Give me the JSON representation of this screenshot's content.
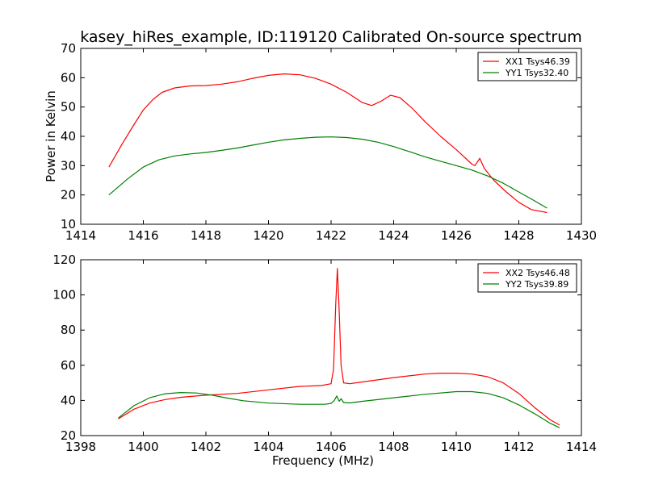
{
  "chart_data": [
    {
      "type": "line",
      "title": "kasey_hiRes_example, ID:119120 Calibrated On-source spectrum",
      "xlabel": "",
      "ylabel": "Power in Kelvin",
      "xlim": [
        1414,
        1430
      ],
      "ylim": [
        10,
        70
      ],
      "xticks": [
        1414,
        1416,
        1418,
        1420,
        1422,
        1424,
        1426,
        1428,
        1430
      ],
      "yticks": [
        10,
        20,
        30,
        40,
        50,
        60,
        70
      ],
      "grid": false,
      "legend": "top-right",
      "series": [
        {
          "name": "XX1 Tsys46.39",
          "color": "#ff0000",
          "x": [
            1414.9,
            1415.3,
            1415.7,
            1416.0,
            1416.3,
            1416.6,
            1417.0,
            1417.5,
            1418.0,
            1418.5,
            1419.0,
            1419.5,
            1420.0,
            1420.5,
            1421.0,
            1421.5,
            1422.0,
            1422.5,
            1423.0,
            1423.3,
            1423.6,
            1423.9,
            1424.2,
            1424.6,
            1425.0,
            1425.5,
            1426.0,
            1426.5,
            1426.6,
            1426.75,
            1426.9,
            1427.2,
            1427.6,
            1428.0,
            1428.4,
            1428.9
          ],
          "y": [
            29.5,
            37,
            44,
            49,
            52.5,
            55,
            56.5,
            57.2,
            57.3,
            57.8,
            58.6,
            59.8,
            60.8,
            61.3,
            61,
            59.8,
            57.8,
            55,
            51.5,
            50.5,
            52,
            54,
            53.2,
            49.5,
            45,
            40,
            35.5,
            30.5,
            30,
            32.5,
            29,
            25,
            21,
            17.5,
            15,
            14
          ]
        },
        {
          "name": "YY1 Tsys32.40",
          "color": "#008000",
          "x": [
            1414.9,
            1415.5,
            1416.0,
            1416.5,
            1417.0,
            1417.5,
            1418.0,
            1418.5,
            1419.0,
            1419.5,
            1420.0,
            1420.5,
            1421.0,
            1421.5,
            1422.0,
            1422.5,
            1423.0,
            1423.5,
            1424.0,
            1424.5,
            1425.0,
            1425.5,
            1426.0,
            1426.5,
            1427.0,
            1427.5,
            1428.0,
            1428.5,
            1428.9
          ],
          "y": [
            20,
            25.5,
            29.5,
            32,
            33.3,
            34,
            34.5,
            35.2,
            36,
            37,
            38,
            38.8,
            39.3,
            39.7,
            39.8,
            39.6,
            39,
            38,
            36.5,
            34.8,
            33,
            31.5,
            30,
            28.5,
            26.5,
            24,
            21,
            18,
            15.5
          ]
        }
      ]
    },
    {
      "type": "line",
      "title": "",
      "xlabel": "Frequency (MHz)",
      "ylabel": "",
      "xlim": [
        1398,
        1414
      ],
      "ylim": [
        20,
        120
      ],
      "xticks": [
        1398,
        1400,
        1402,
        1404,
        1406,
        1408,
        1410,
        1412,
        1414
      ],
      "yticks": [
        20,
        40,
        60,
        80,
        100,
        120
      ],
      "grid": false,
      "legend": "top-right",
      "series": [
        {
          "name": "XX2 Tsys46.48",
          "color": "#ff0000",
          "x": [
            1399.2,
            1399.7,
            1400.2,
            1400.7,
            1401.2,
            1402.0,
            1403.0,
            1404.0,
            1405.0,
            1405.7,
            1406.0,
            1406.08,
            1406.15,
            1406.2,
            1406.25,
            1406.32,
            1406.4,
            1406.6,
            1407.0,
            1408.0,
            1409.0,
            1409.5,
            1410.0,
            1410.5,
            1411.0,
            1411.5,
            1412.0,
            1412.5,
            1413.0,
            1413.3
          ],
          "y": [
            29.5,
            35,
            38.5,
            40.5,
            41.8,
            43,
            44,
            46,
            48,
            48.5,
            49.5,
            58,
            95,
            115,
            95,
            60,
            50,
            49.5,
            50.5,
            53,
            55,
            55.5,
            55.5,
            55,
            53.5,
            50,
            44,
            36,
            29,
            26
          ]
        },
        {
          "name": "YY2 Tsys39.89",
          "color": "#008000",
          "x": [
            1399.2,
            1399.7,
            1400.2,
            1400.7,
            1401.2,
            1401.7,
            1402.2,
            1402.7,
            1403.2,
            1404.0,
            1405.0,
            1405.8,
            1406.0,
            1406.1,
            1406.18,
            1406.26,
            1406.32,
            1406.4,
            1406.6,
            1407.0,
            1408.0,
            1409.0,
            1410.0,
            1410.5,
            1411.0,
            1411.5,
            1412.0,
            1412.5,
            1413.0,
            1413.3
          ],
          "y": [
            30,
            37,
            41.5,
            43.8,
            44.5,
            44.2,
            43,
            41.3,
            39.8,
            38.5,
            37.8,
            37.8,
            38.3,
            40,
            42.5,
            39.5,
            41,
            38.8,
            38.6,
            39.5,
            41.5,
            43.5,
            45,
            45,
            44,
            41.5,
            37.5,
            32.5,
            27,
            24.5
          ]
        }
      ]
    }
  ]
}
